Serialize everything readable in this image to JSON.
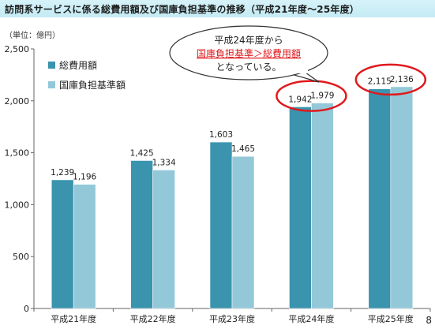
{
  "slide": {
    "title": "訪問系サービスに係る総費用額及び国庫負担基準の推移（平成21年度〜25年度）",
    "page_number": "8"
  },
  "callout": {
    "lines": [
      "平成24年度から",
      "国庫負担基準＞総費用額",
      "となっている。"
    ],
    "emphasis_color": "#e0191c"
  },
  "chart_data": {
    "type": "bar",
    "unit_label": "（単位：億円）",
    "categories": [
      "平成21年度",
      "平成22年度",
      "平成23年度",
      "平成24年度",
      "平成25年度"
    ],
    "series": [
      {
        "name": "総費用額",
        "values": [
          1239,
          1425,
          1603,
          1942,
          2115
        ],
        "color": "#3a94ae"
      },
      {
        "name": "国庫負担基準額",
        "values": [
          1196,
          1334,
          1465,
          1979,
          2136
        ],
        "color": "#93c8d8"
      }
    ],
    "ylim": [
      0,
      2500
    ],
    "yticks": [
      0,
      500,
      1000,
      1500,
      2000,
      2500
    ],
    "ytick_labels": [
      "0",
      "500",
      "1,000",
      "1,500",
      "2,000",
      "2,500"
    ],
    "value_labels": [
      [
        "1,239",
        "1,425",
        "1,603",
        "1,942",
        "2,115"
      ],
      [
        "1,196",
        "1,334",
        "1,465",
        "1,979",
        "2,136"
      ]
    ],
    "legend_position": "top-left",
    "grid": false,
    "highlighted_categories": [
      3,
      4
    ],
    "highlight_color": "#e0191c"
  }
}
